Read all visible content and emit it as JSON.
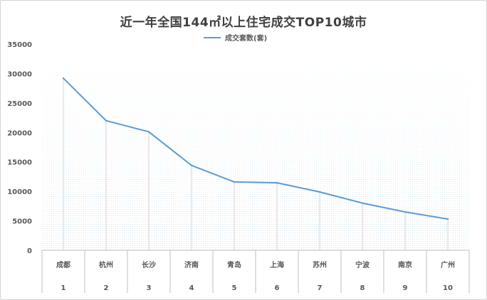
{
  "chart_data": {
    "type": "line",
    "title": "近一年全国144㎡以上住宅成交TOP10城市",
    "legend": "成交套数(套)",
    "legend_position": "top",
    "categories": [
      "成都",
      "杭州",
      "长沙",
      "济南",
      "青岛",
      "上海",
      "苏州",
      "宁波",
      "南京",
      "广州"
    ],
    "ranks": [
      "1",
      "2",
      "3",
      "4",
      "5",
      "6",
      "7",
      "8",
      "9",
      "10"
    ],
    "series": [
      {
        "name": "成交套数(套)",
        "values": [
          29200,
          22000,
          20100,
          14400,
          11600,
          11450,
          9900,
          8000,
          6500,
          5300
        ]
      }
    ],
    "ylim": [
      0,
      35000
    ],
    "yticks": [
      "0",
      "5000",
      "10000",
      "15000",
      "20000",
      "25000",
      "30000",
      "35000"
    ],
    "line_color": "#5b9bd5"
  }
}
